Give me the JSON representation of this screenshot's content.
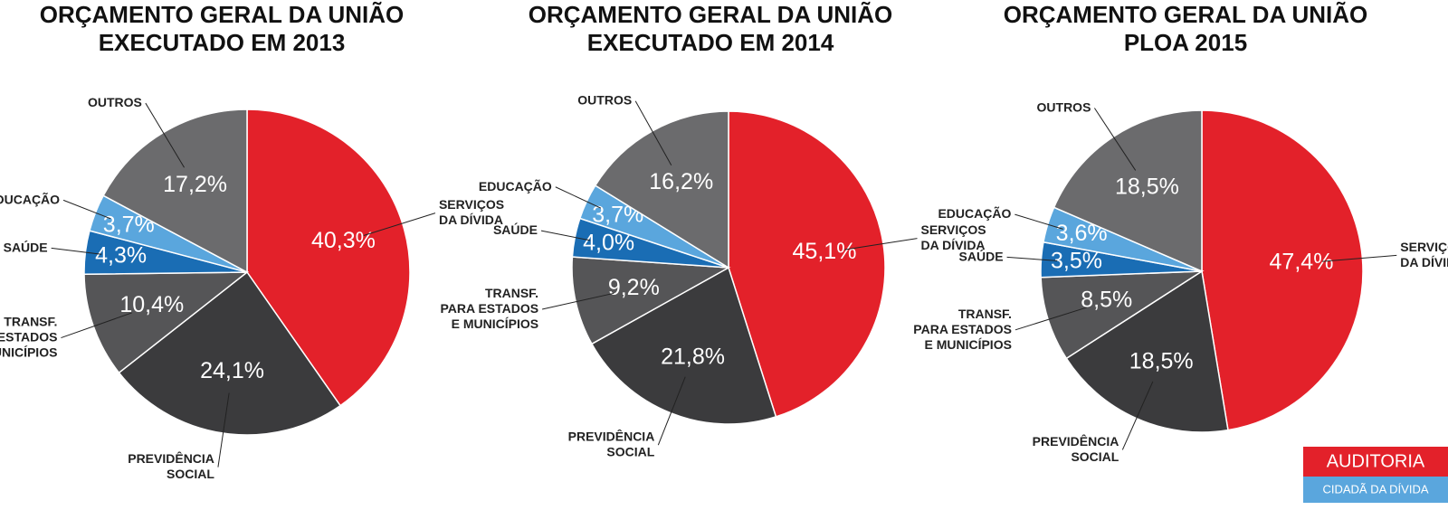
{
  "chart_data": [
    {
      "type": "pie",
      "title": [
        "ORÇAMENTO GERAL DA UNIÃO",
        "EXECUTADO EM 2013"
      ],
      "categories": [
        [
          "SERVIÇOS",
          "DA DÍVIDA"
        ],
        [
          "PREVIDÊNCIA",
          "SOCIAL"
        ],
        [
          "TRANSF.",
          "PARA ESTADOS",
          "E MUNICÍPIOS"
        ],
        [
          "SAÚDE"
        ],
        [
          "EDUCAÇÃO"
        ],
        [
          "OUTROS"
        ]
      ],
      "values": [
        40.3,
        24.1,
        10.4,
        4.3,
        3.7,
        17.2
      ],
      "value_labels": [
        "40,3%",
        "24,1%",
        "10,4%",
        "4,3%",
        "3,7%",
        "17,2%"
      ],
      "colors": [
        "#e3212a",
        "#3b3b3d",
        "#555557",
        "#1a6db4",
        "#5aa6dd",
        "#6b6b6d"
      ]
    },
    {
      "type": "pie",
      "title": [
        "ORÇAMENTO GERAL DA UNIÃO",
        "EXECUTADO EM 2014"
      ],
      "categories": [
        [
          "SERVIÇOS",
          "DA DÍVIDA"
        ],
        [
          "PREVIDÊNCIA",
          "SOCIAL"
        ],
        [
          "TRANSF.",
          "PARA ESTADOS",
          "E MUNICÍPIOS"
        ],
        [
          "SAÚDE"
        ],
        [
          "EDUCAÇÃO"
        ],
        [
          "OUTROS"
        ]
      ],
      "values": [
        45.1,
        21.8,
        9.2,
        4.0,
        3.7,
        16.2
      ],
      "value_labels": [
        "45,1%",
        "21,8%",
        "9,2%",
        "4,0%",
        "3,7%",
        "16,2%"
      ],
      "colors": [
        "#e3212a",
        "#3b3b3d",
        "#555557",
        "#1a6db4",
        "#5aa6dd",
        "#6b6b6d"
      ]
    },
    {
      "type": "pie",
      "title": [
        "ORÇAMENTO GERAL DA UNIÃO",
        "PLOA 2015"
      ],
      "categories": [
        [
          "SERVIÇOS",
          "DA DÍVIDA"
        ],
        [
          "PREVIDÊNCIA",
          "SOCIAL"
        ],
        [
          "TRANSF.",
          "PARA ESTADOS",
          "E MUNICÍPIOS"
        ],
        [
          "SAÚDE"
        ],
        [
          "EDUCAÇÃO"
        ],
        [
          "OUTROS"
        ]
      ],
      "values": [
        47.4,
        18.5,
        8.5,
        3.5,
        3.6,
        18.5
      ],
      "value_labels": [
        "47,4%",
        "18,5%",
        "8,5%",
        "3,5%",
        "3,6%",
        "18,5%"
      ],
      "colors": [
        "#e3212a",
        "#3b3b3d",
        "#555557",
        "#1a6db4",
        "#5aa6dd",
        "#6b6b6d"
      ]
    }
  ],
  "logo": {
    "line1": "AUDITORIA",
    "line2": "CIDADÃ DA DÍVIDA"
  }
}
